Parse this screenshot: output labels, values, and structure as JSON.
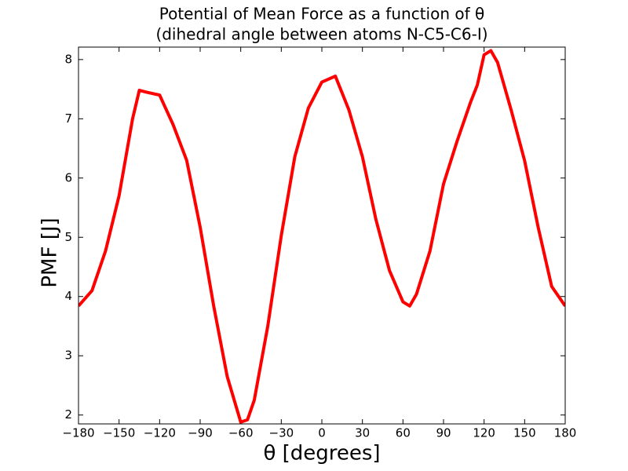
{
  "chart_data": {
    "type": "line",
    "title": [
      "Potential of Mean Force as a function of θ",
      "(dihedral angle between atoms N-C5-C6-I)"
    ],
    "xlabel": "θ  [degrees]",
    "ylabel": "PMF  [J]",
    "x": [
      -180,
      -170,
      -160,
      -150,
      -140,
      -135,
      -130,
      -120,
      -110,
      -100,
      -90,
      -80,
      -70,
      -60,
      -55,
      -50,
      -40,
      -30,
      -20,
      -10,
      0,
      10,
      20,
      30,
      40,
      50,
      60,
      65,
      70,
      80,
      90,
      100,
      110,
      115,
      120,
      125,
      130,
      140,
      150,
      160,
      170,
      180
    ],
    "series": [
      {
        "name": "PMF",
        "color": "#ff0000",
        "values": [
          3.84,
          4.1,
          4.77,
          5.7,
          7.0,
          7.48,
          7.45,
          7.4,
          6.9,
          6.3,
          5.17,
          3.84,
          2.65,
          1.88,
          1.92,
          2.25,
          3.5,
          5.03,
          6.36,
          7.18,
          7.62,
          7.72,
          7.15,
          6.36,
          5.3,
          4.44,
          3.91,
          3.84,
          4.04,
          4.77,
          5.9,
          6.62,
          7.28,
          7.57,
          8.08,
          8.15,
          7.95,
          7.15,
          6.29,
          5.17,
          4.17,
          3.84
        ]
      }
    ],
    "xlim": [
      -180,
      180
    ],
    "ylim": [
      1.85,
      8.21
    ],
    "xticks": [
      {
        "value": -180,
        "label": "−180"
      },
      {
        "value": -150,
        "label": "−150"
      },
      {
        "value": -120,
        "label": "−120"
      },
      {
        "value": -90,
        "label": "−90"
      },
      {
        "value": -60,
        "label": "−60"
      },
      {
        "value": -30,
        "label": "−30"
      },
      0,
      30,
      60,
      90,
      120,
      150,
      180
    ],
    "yticks": [
      2,
      3,
      4,
      5,
      6,
      7,
      8
    ],
    "grid": false
  }
}
